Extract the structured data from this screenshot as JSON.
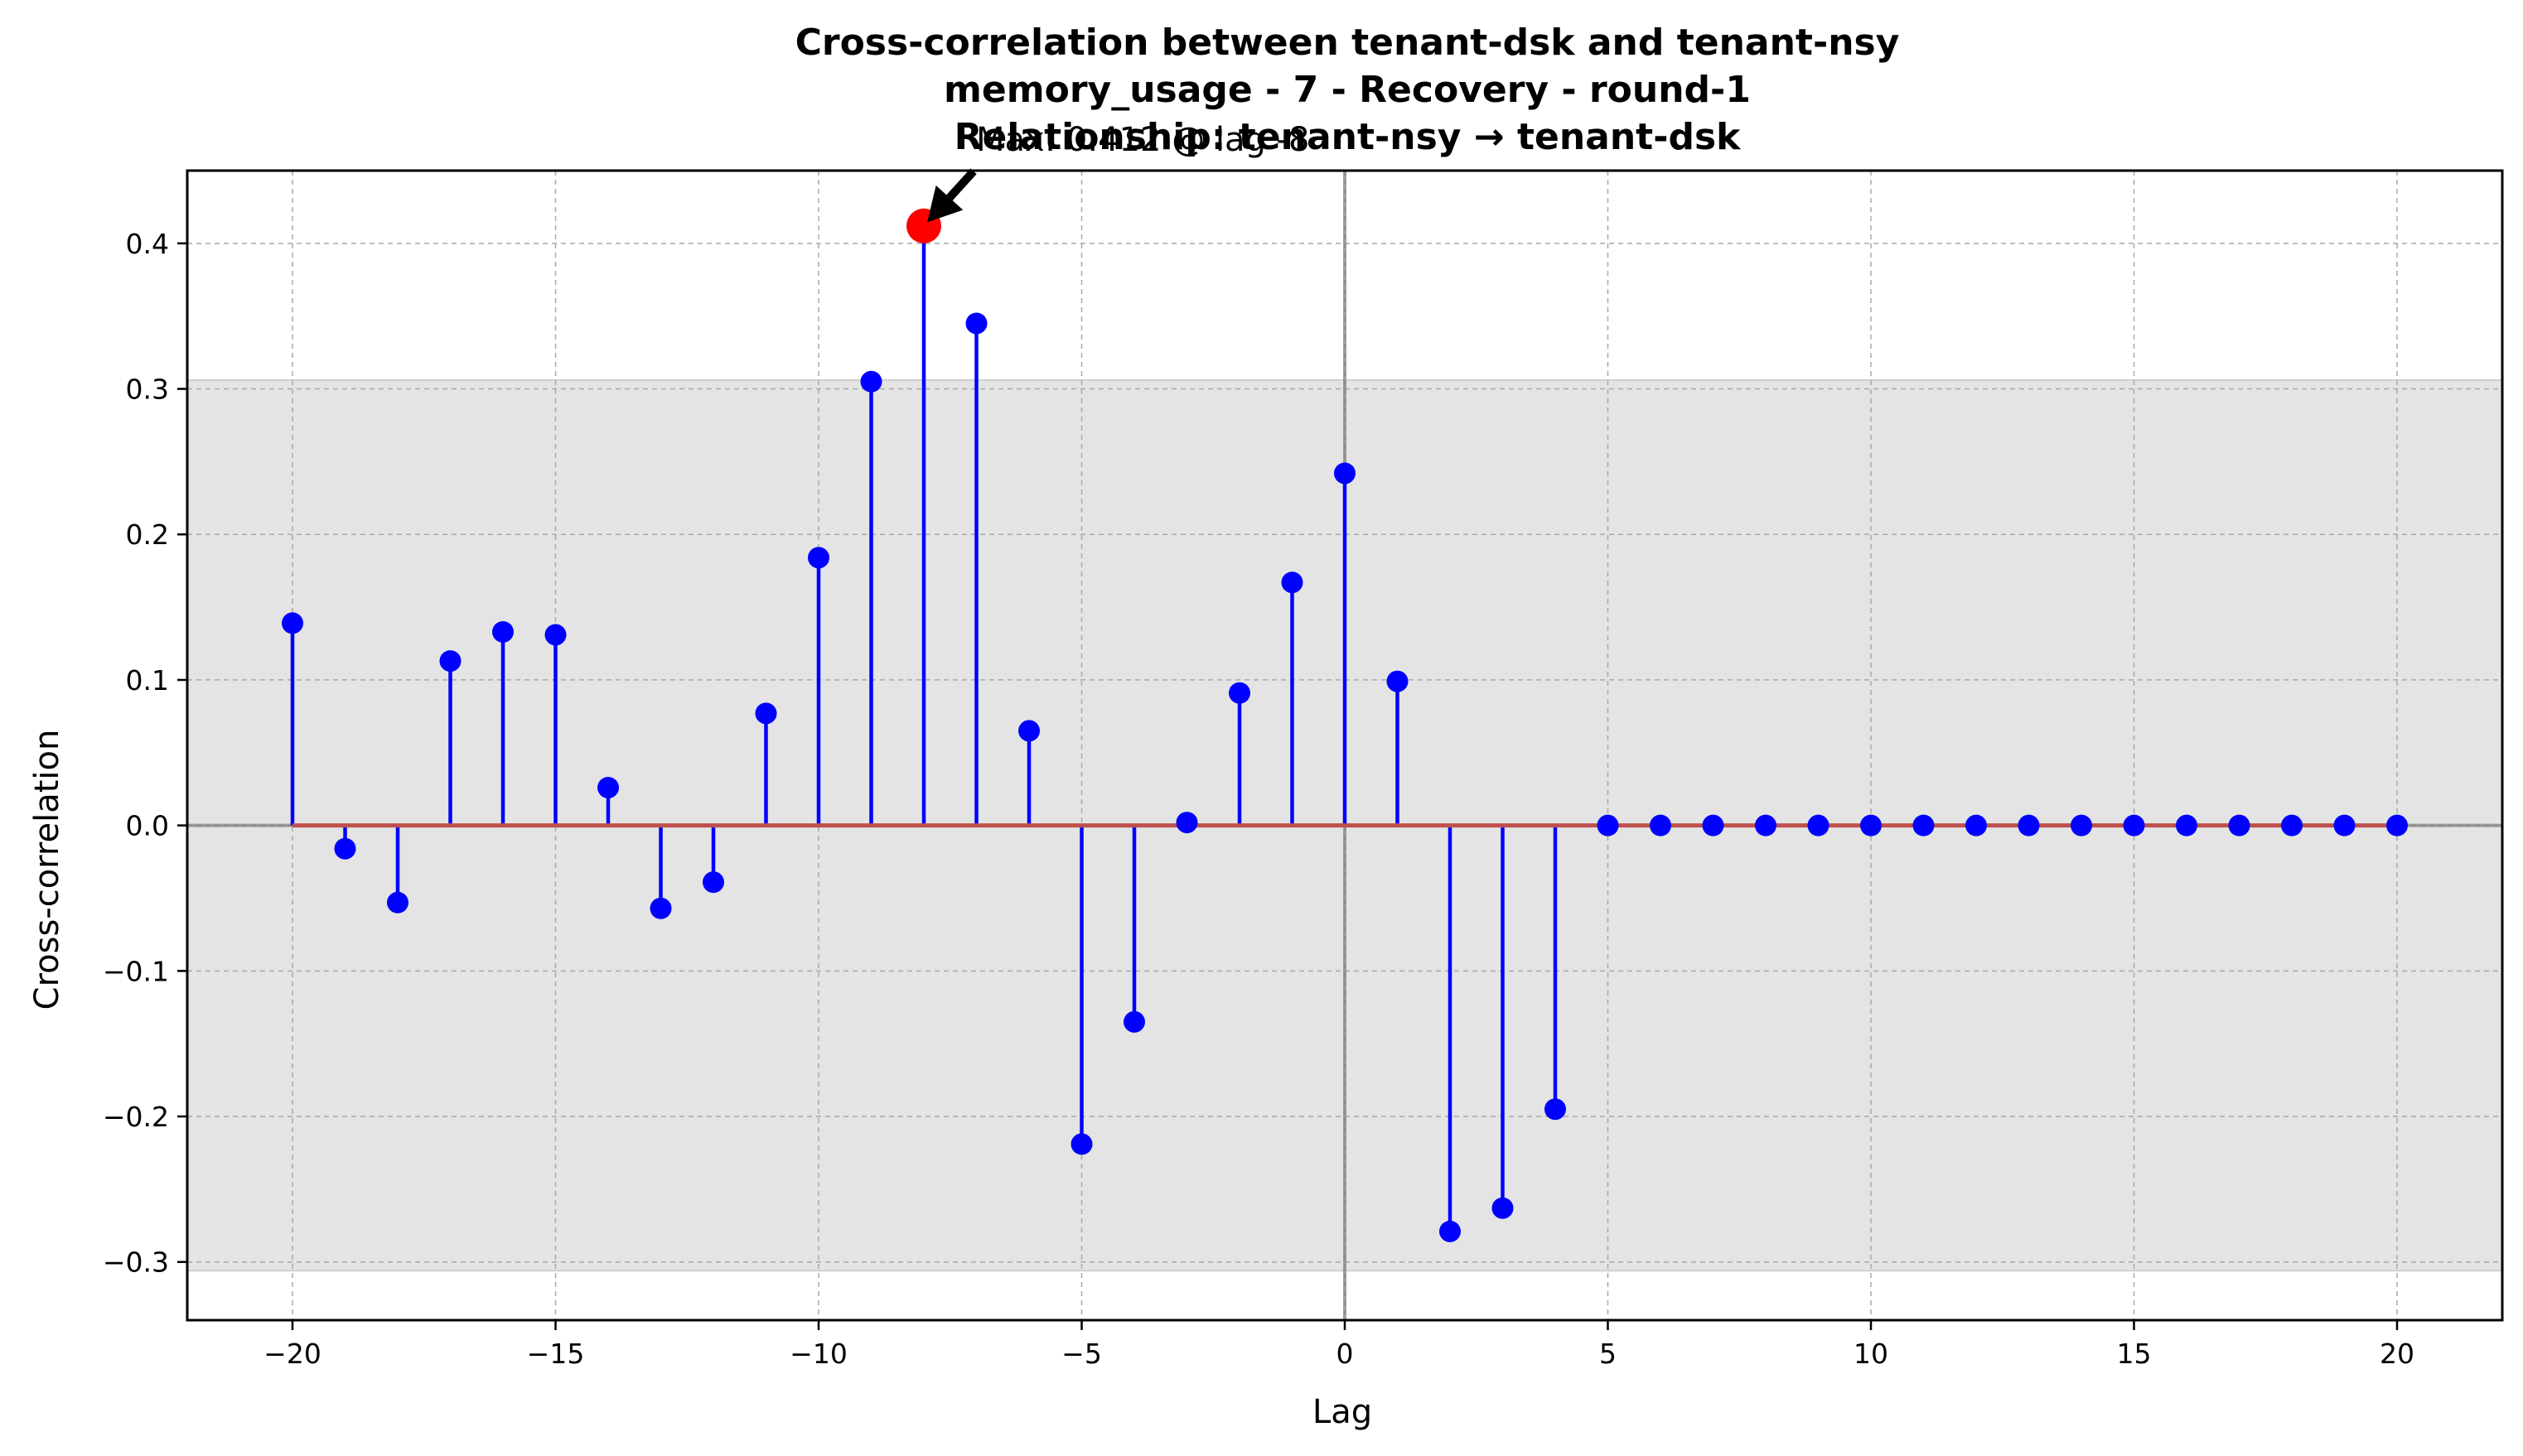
{
  "chart_data": {
    "type": "stem",
    "title_lines": [
      "Cross-correlation between tenant-dsk and tenant-nsy",
      "memory_usage - 7 - Recovery - round-1",
      "Relationship: tenant-nsy → tenant-dsk"
    ],
    "annotation": "Max: 0.412 @ lag -8",
    "xlabel": "Lag",
    "ylabel": "Cross-correlation",
    "xlim": [
      -22,
      22
    ],
    "ylim": [
      -0.34,
      0.45
    ],
    "xticks": [
      -20,
      -15,
      -10,
      -5,
      0,
      5,
      10,
      15,
      20
    ],
    "yticks": [
      -0.3,
      -0.2,
      -0.1,
      0.0,
      0.1,
      0.2,
      0.3,
      0.4
    ],
    "xtick_labels": [
      "−20",
      "−15",
      "−10",
      "−5",
      "0",
      "5",
      "10",
      "15",
      "20"
    ],
    "ytick_labels": [
      "−0.3",
      "−0.2",
      "−0.1",
      "0.0",
      "0.1",
      "0.2",
      "0.3",
      "0.4"
    ],
    "confidence_band": 0.306,
    "grid": true,
    "lags": [
      -20,
      -19,
      -18,
      -17,
      -16,
      -15,
      -14,
      -13,
      -12,
      -11,
      -10,
      -9,
      -8,
      -7,
      -6,
      -5,
      -4,
      -3,
      -2,
      -1,
      0,
      1,
      2,
      3,
      4,
      5,
      6,
      7,
      8,
      9,
      10,
      11,
      12,
      13,
      14,
      15,
      16,
      17,
      18,
      19,
      20
    ],
    "values": [
      0.139,
      -0.016,
      -0.053,
      0.113,
      0.133,
      0.131,
      0.026,
      -0.057,
      -0.039,
      0.077,
      0.184,
      0.305,
      0.412,
      0.345,
      0.065,
      -0.219,
      -0.135,
      0.002,
      0.091,
      0.167,
      0.242,
      0.099,
      -0.279,
      -0.263,
      -0.195,
      0,
      0,
      0,
      0,
      0,
      0,
      0,
      0,
      0,
      0,
      0,
      0,
      0,
      0,
      0,
      0
    ],
    "max": {
      "lag": -8,
      "value": 0.412
    },
    "colors": {
      "stem": "#0000ff",
      "marker": "#0000ff",
      "max_marker": "#ff0000",
      "baseline": "#c0504d",
      "band": "#e4e4e4",
      "grid": "#a8a8a8",
      "zero_lines": "#808080"
    }
  }
}
